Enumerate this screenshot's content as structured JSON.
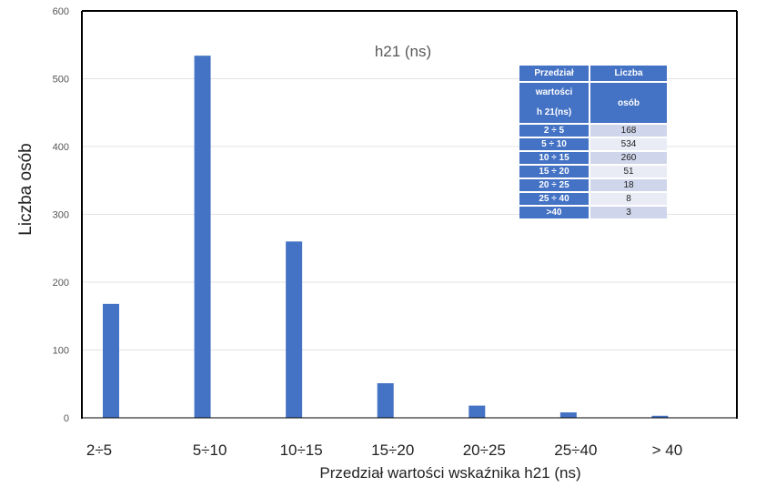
{
  "chart_data": {
    "type": "bar",
    "title": "h21 (ns)",
    "xlabel": "Przedział wartości  wskaźnika h21 (ns)",
    "ylabel": "Liczba osób",
    "categories": [
      "2÷5",
      "5÷10",
      "10÷15",
      "15÷20",
      "20÷25",
      "25÷40",
      "> 40"
    ],
    "values": [
      168,
      534,
      260,
      51,
      18,
      8,
      3
    ],
    "ylim": [
      0,
      600
    ],
    "yticks": [
      0,
      100,
      200,
      300,
      400,
      500,
      600
    ],
    "grid": true,
    "bar_color": "#4472C4"
  },
  "table": {
    "header_col1_line1": "Przedział",
    "header_col1_line2": "wartości",
    "header_col1_line3": "h 21(ns)",
    "header_col2_line1": "Liczba",
    "header_col2_line2": "osób",
    "rows": [
      {
        "range": "2 ÷ 5",
        "count": "168"
      },
      {
        "range": "5 ÷ 10",
        "count": "534"
      },
      {
        "range": "10 ÷ 15",
        "count": "260"
      },
      {
        "range": "15 ÷ 20",
        "count": "51"
      },
      {
        "range": "20 ÷ 25",
        "count": "18"
      },
      {
        "range": "25 ÷ 40",
        "count": "8"
      },
      {
        "range": ">40",
        "count": "3"
      }
    ]
  }
}
